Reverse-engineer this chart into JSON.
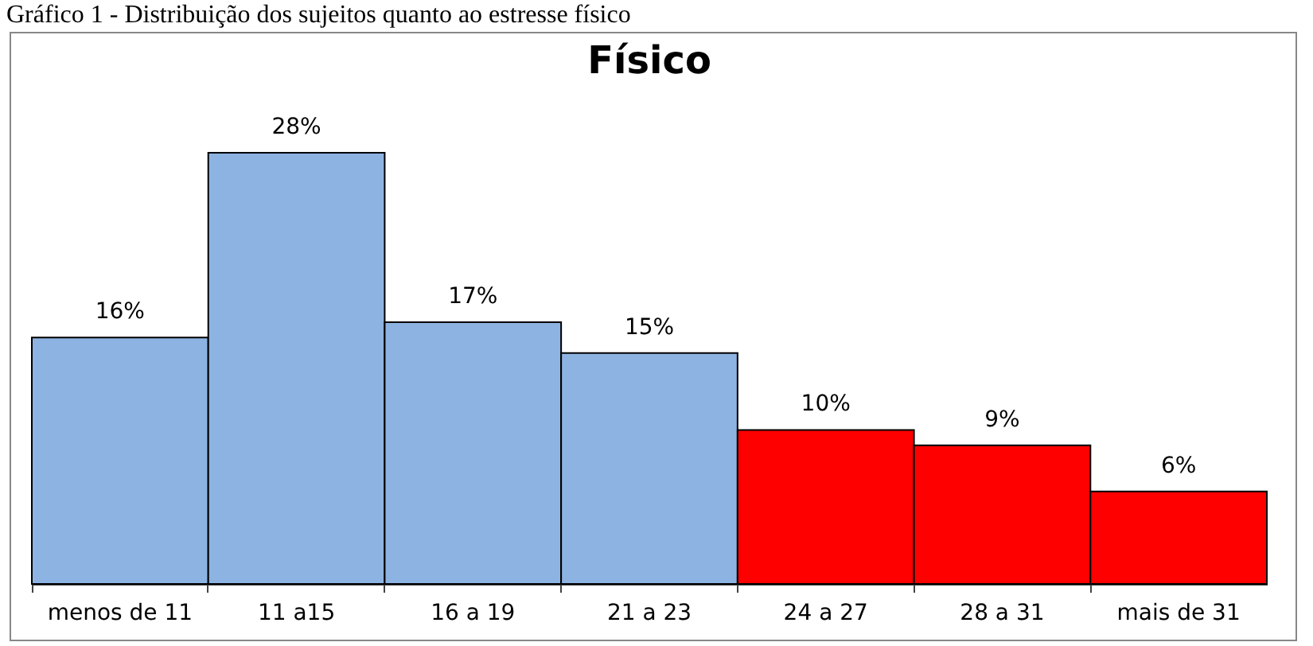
{
  "chart_data": {
    "type": "bar",
    "title": "Físico",
    "annotations": [
      "Gráfico 1 - Distribuição dos sujeitos quanto ao estresse físico"
    ],
    "categories": [
      "menos de 11",
      "11 a15",
      "16 a 19",
      "21 a 23",
      "24 a 27",
      "28 a 31",
      "mais de 31"
    ],
    "values": [
      16,
      28,
      17,
      15,
      10,
      9,
      6
    ],
    "colors": [
      "#8db3e2",
      "#8db3e2",
      "#8db3e2",
      "#8db3e2",
      "#ff0000",
      "#ff0000",
      "#ff0000"
    ],
    "value_labels": [
      "16%",
      "28%",
      "17%",
      "15%",
      "10%",
      "9%",
      "6%"
    ]
  }
}
